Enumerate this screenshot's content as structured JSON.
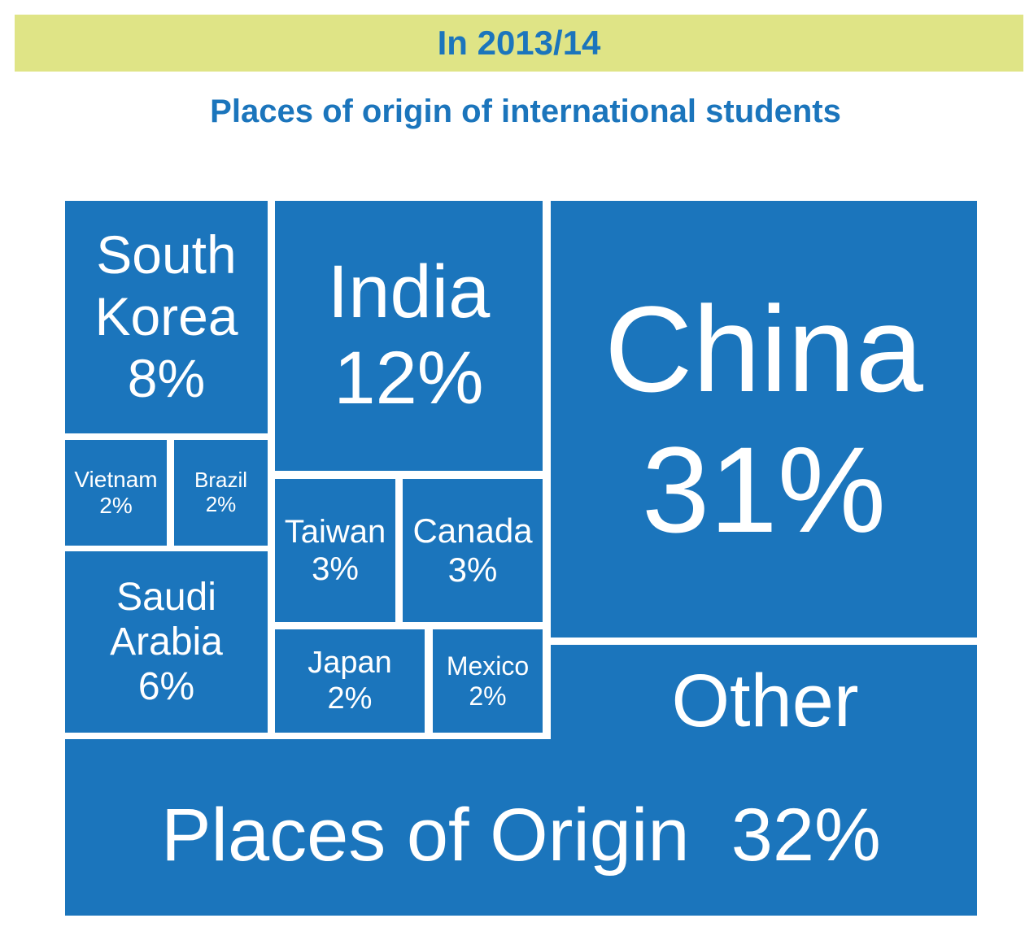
{
  "chart_data": {
    "type": "treemap",
    "title": "In 2013/14",
    "subtitle": "Places of origin of international students",
    "color": "#1b75bc",
    "categories": [
      "China",
      "Other Places of Origin",
      "India",
      "South Korea",
      "Saudi Arabia",
      "Taiwan",
      "Canada",
      "Vietnam",
      "Brazil",
      "Japan",
      "Mexico"
    ],
    "values": [
      31,
      32,
      12,
      8,
      6,
      3,
      3,
      2,
      2,
      2,
      2
    ],
    "value_labels": [
      "31%",
      "32%",
      "12%",
      "8%",
      "6%",
      "3%",
      "3%",
      "2%",
      "2%",
      "2%",
      "2%"
    ]
  }
}
